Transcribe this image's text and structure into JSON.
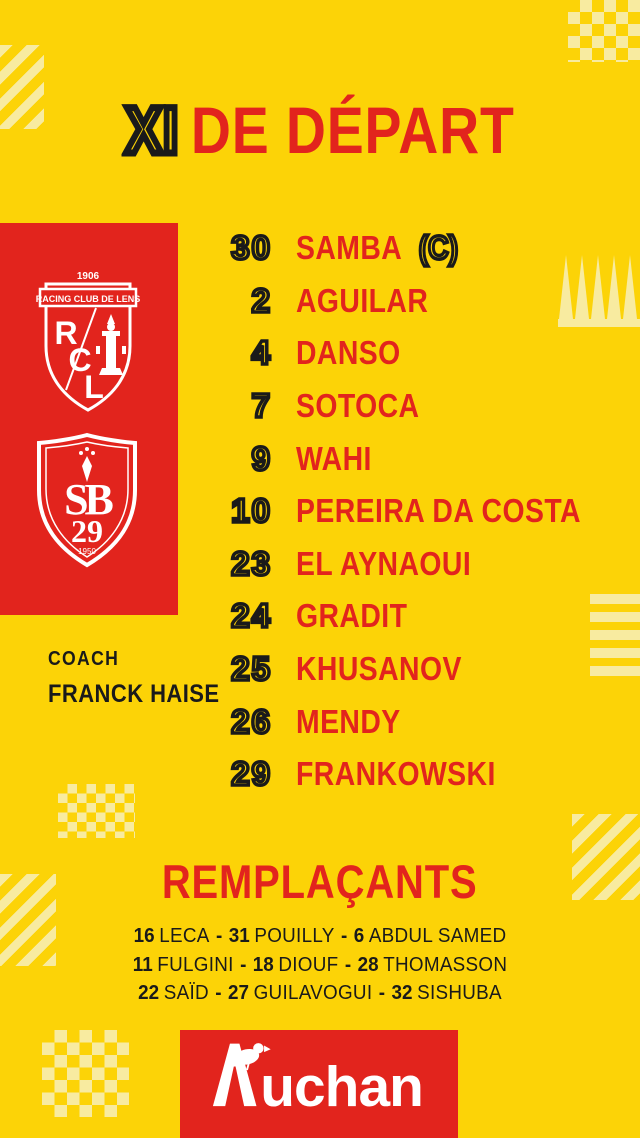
{
  "colors": {
    "background": "#FCD307",
    "pale_accent": "#F8EBA0",
    "red": "#E2241D",
    "ink": "#1A1A1A",
    "white": "#FFFFFF"
  },
  "title": {
    "prefix": "XI",
    "rest": "DE DÉPART"
  },
  "badges": {
    "rcl": {
      "year": "1906",
      "banner": "RACING CLUB DE LENS",
      "letter_r": "R",
      "letter_c": "C",
      "letter_l": "L"
    },
    "sb29": {
      "initials": "SB",
      "number": "29",
      "year": "1950"
    }
  },
  "coach": {
    "label": "COACH",
    "name": "FRANCK HAISE"
  },
  "lineup": {
    "players": [
      {
        "number": "30",
        "name": "SAMBA",
        "suffix": "(C)"
      },
      {
        "number": "2",
        "name": "AGUILAR"
      },
      {
        "number": "4",
        "name": "DANSO"
      },
      {
        "number": "7",
        "name": "SOTOCA"
      },
      {
        "number": "9",
        "name": "WAHI"
      },
      {
        "number": "10",
        "name": "PEREIRA DA COSTA"
      },
      {
        "number": "23",
        "name": "EL AYNAOUI"
      },
      {
        "number": "24",
        "name": "GRADIT"
      },
      {
        "number": "25",
        "name": "KHUSANOV"
      },
      {
        "number": "26",
        "name": "MENDY"
      },
      {
        "number": "29",
        "name": "FRANKOWSKI"
      }
    ]
  },
  "substitutes": {
    "heading": "REMPLAÇANTS",
    "separator": "-",
    "lines": [
      [
        {
          "number": "16",
          "name": "LECA"
        },
        {
          "number": "31",
          "name": "POUILLY"
        },
        {
          "number": "6",
          "name": "ABDUL SAMED"
        }
      ],
      [
        {
          "number": "11",
          "name": "FULGINI"
        },
        {
          "number": "18",
          "name": "DIOUF"
        },
        {
          "number": "28",
          "name": "THOMASSON"
        }
      ],
      [
        {
          "number": "22",
          "name": "SAÏD"
        },
        {
          "number": "27",
          "name": "GUILAVOGUI"
        },
        {
          "number": "32",
          "name": "SISHUBA"
        }
      ]
    ]
  },
  "sponsor": {
    "name": "Auchan",
    "wordmark_tail": "uchan"
  }
}
